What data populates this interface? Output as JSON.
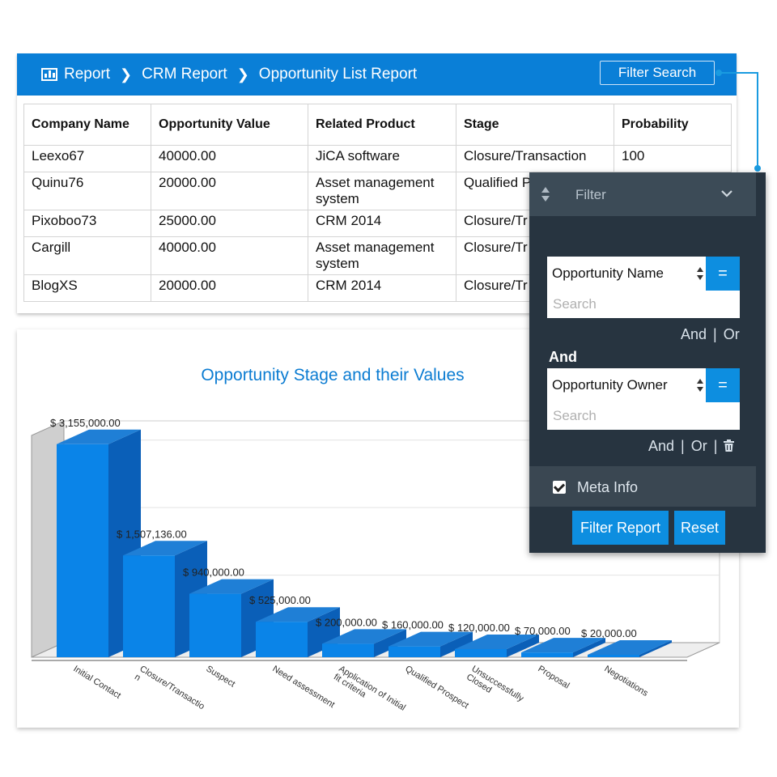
{
  "header": {
    "breadcrumb": [
      {
        "label": "Report"
      },
      {
        "label": "CRM Report"
      },
      {
        "label": "Opportunity List Report"
      }
    ],
    "filter_search_label": "Filter Search"
  },
  "table": {
    "columns": [
      "Company Name",
      "Opportunity Value",
      "Related Product",
      "Stage",
      "Probability"
    ],
    "rows": [
      [
        "Leexo67",
        "40000.00",
        "JiCA software",
        "Closure/Transaction",
        "100"
      ],
      [
        "Quinu76",
        "20000.00",
        "Asset management system",
        "Qualified P",
        ""
      ],
      [
        "Pixoboo73",
        "25000.00",
        "CRM 2014",
        "Closure/Tr",
        ""
      ],
      [
        "Cargill",
        "40000.00",
        "Asset management system",
        "Closure/Tr",
        ""
      ],
      [
        "BlogXS",
        "20000.00",
        "CRM 2014",
        "Closure/Tr",
        ""
      ]
    ]
  },
  "filter_panel": {
    "title": "Filter",
    "condition1": {
      "field": "Opportunity Name",
      "operator": "=",
      "placeholder": "Search"
    },
    "and_label": "And",
    "or_label": "Or",
    "join_label": "And",
    "condition2": {
      "field": "Opportunity Owner",
      "operator": "=",
      "placeholder": "Search"
    },
    "meta_info_label": "Meta Info",
    "meta_info_checked": true,
    "filter_report_label": "Filter Report",
    "reset_label": "Reset",
    "accent": "#0d8ee0"
  },
  "chart_data": {
    "type": "bar",
    "title": "Opportunity Stage and their Values",
    "categories": [
      "Initial Contact",
      "Closure/Transaction",
      "Suspect",
      "Need assessment",
      "Application of Initial fit criteria",
      "Qualified Prospect",
      "Unsuccessfully Closed",
      "Proposal",
      "Negotiations"
    ],
    "category_labels": [
      [
        "Initial Contact"
      ],
      [
        "Closure/Transactio",
        "n"
      ],
      [
        "Suspect"
      ],
      [
        "Need assessment"
      ],
      [
        "Application of Initial",
        "fit criteria"
      ],
      [
        "Qualified Prospect"
      ],
      [
        "Unsuccessfully",
        "Closed"
      ],
      [
        "Proposal"
      ],
      [
        "Negotiations"
      ]
    ],
    "values": [
      3155000,
      1507136,
      940000,
      525000,
      200000,
      160000,
      120000,
      70000,
      20000
    ],
    "value_labels": [
      "$ 3,155,000.00",
      "$ 1,507,136.00",
      "$ 940,000.00",
      "$ 525,000.00",
      "$ 200,000.00",
      "$ 160,000.00",
      "$ 120,000.00",
      "$ 70,000.00",
      "$ 20,000.00"
    ],
    "ylim": [
      0,
      3500000
    ],
    "bar_color": "#0a84e8",
    "style": "3d"
  }
}
